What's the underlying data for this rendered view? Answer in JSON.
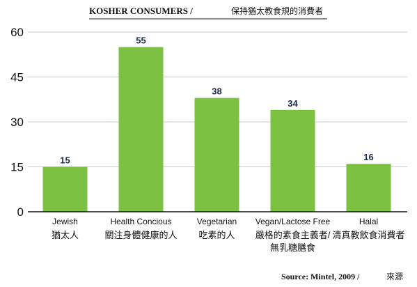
{
  "chart_data": {
    "type": "bar",
    "title": "KOSHER CONSUMERS /",
    "subtitle": "保持猶太教食規的消費者",
    "categories": [
      "Jewish",
      "Health Concious",
      "Vegetarian",
      "Vegan/Lactose Free",
      "Halal"
    ],
    "categories_zh": [
      [
        "猶太人"
      ],
      [
        "關注身體健康的人"
      ],
      [
        "吃素的人"
      ],
      [
        "嚴格的素食主義者/",
        "無乳糖膳食"
      ],
      [
        "清真教飲食消費者"
      ]
    ],
    "values": [
      15,
      55,
      38,
      34,
      16
    ],
    "value_labels": [
      "15",
      "55",
      "38",
      "34",
      "16"
    ],
    "yticks": [
      "0",
      "15",
      "30",
      "45",
      "60"
    ],
    "ytick_values": [
      0,
      15,
      30,
      45,
      60
    ],
    "ylim": [
      0,
      60
    ],
    "xlabel": "",
    "ylabel": "",
    "grid": true,
    "bar_color": "#7cc142",
    "grid_color": "#c8c8c8",
    "source": "Source: Mintel, 2009 /",
    "source_zh": "來源"
  }
}
